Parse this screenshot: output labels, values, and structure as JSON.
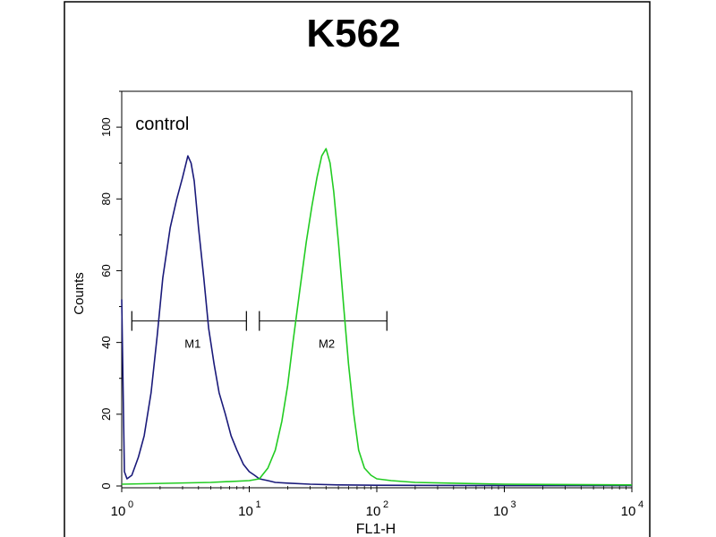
{
  "chart_data": {
    "type": "line",
    "title": "K562",
    "xlabel": "FL1-H",
    "ylabel": "Counts",
    "x_scale": "log",
    "xlim": [
      1,
      10000
    ],
    "ylim": [
      0,
      110
    ],
    "x_ticks": [
      {
        "value": 1,
        "base": "10",
        "exp": "0"
      },
      {
        "value": 10,
        "base": "10",
        "exp": "1"
      },
      {
        "value": 100,
        "base": "10",
        "exp": "2"
      },
      {
        "value": 1000,
        "base": "10",
        "exp": "3"
      },
      {
        "value": 10000,
        "base": "10",
        "exp": "4"
      }
    ],
    "y_ticks": [
      0,
      20,
      40,
      60,
      80,
      100
    ],
    "annotations": [
      {
        "text": "control",
        "x": 1.2,
        "y": 100
      }
    ],
    "gates": [
      {
        "label": "M1",
        "x_start": 1.2,
        "x_end": 9.5,
        "y": 46
      },
      {
        "label": "M2",
        "x_start": 12,
        "x_end": 120,
        "y": 46
      }
    ],
    "series": [
      {
        "name": "control",
        "color": "#1a1a7a",
        "x": [
          1.0,
          1.05,
          1.1,
          1.2,
          1.35,
          1.5,
          1.7,
          1.9,
          2.1,
          2.4,
          2.7,
          3.0,
          3.3,
          3.5,
          3.7,
          4.0,
          4.4,
          4.8,
          5.3,
          5.8,
          6.5,
          7.2,
          8.0,
          9.0,
          10,
          11,
          12,
          14,
          16,
          20,
          30,
          50,
          100,
          1000,
          10000
        ],
        "y": [
          52,
          4,
          2,
          3,
          8,
          14,
          26,
          42,
          58,
          72,
          80,
          86,
          92,
          90,
          85,
          72,
          58,
          44,
          34,
          26,
          20,
          14,
          10,
          6,
          4,
          3,
          2,
          1.5,
          1,
          0.8,
          0.5,
          0.3,
          0.2,
          0.1,
          0.1
        ]
      },
      {
        "name": "",
        "color": "#22cc22",
        "x": [
          1,
          5,
          10,
          12,
          14,
          16,
          18,
          20,
          22,
          25,
          28,
          31,
          34,
          37,
          40,
          43,
          46,
          50,
          55,
          60,
          66,
          72,
          80,
          90,
          100,
          130,
          200,
          500,
          1000,
          10000
        ],
        "y": [
          0.5,
          1,
          1.5,
          2,
          5,
          10,
          18,
          28,
          40,
          55,
          68,
          78,
          86,
          92,
          94,
          90,
          82,
          68,
          50,
          34,
          20,
          10,
          5,
          3,
          2,
          1.5,
          1,
          0.7,
          0.5,
          0.3
        ]
      }
    ]
  }
}
